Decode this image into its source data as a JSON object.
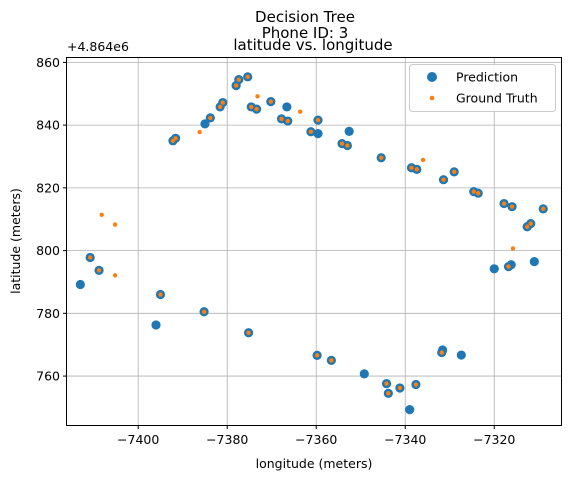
{
  "chart_data": {
    "type": "scatter",
    "title": [
      "Decision Tree",
      "Phone ID: 3",
      "latitude vs. longitude"
    ],
    "xlabel": "longitude (meters)",
    "ylabel": "latitude (meters)",
    "y_offset_label": "+4.864e6",
    "xlim": [
      -7416,
      -7305
    ],
    "ylim": [
      744.4,
      861.4
    ],
    "xticks": [
      -7400,
      -7380,
      -7360,
      -7340,
      -7320
    ],
    "xtick_labels": [
      "−7400",
      "−7380",
      "−7360",
      "−7340",
      "−7320"
    ],
    "yticks": [
      760,
      780,
      800,
      820,
      840,
      860
    ],
    "ytick_labels": [
      "760",
      "780",
      "800",
      "820",
      "840",
      "860"
    ],
    "grid": true,
    "legend_position": "top-right",
    "series": [
      {
        "name": "Prediction",
        "color": "#1f77b4",
        "marker": "large-circle",
        "points": [
          [
            -7413.0,
            789.2
          ],
          [
            -7410.8,
            797.8
          ],
          [
            -7408.8,
            793.7
          ],
          [
            -7396.0,
            776.3
          ],
          [
            -7395.0,
            786.0
          ],
          [
            -7392.2,
            835.0
          ],
          [
            -7391.6,
            835.8
          ],
          [
            -7385.2,
            780.5
          ],
          [
            -7385.0,
            840.4
          ],
          [
            -7383.8,
            842.3
          ],
          [
            -7381.6,
            845.8
          ],
          [
            -7381.0,
            847.2
          ],
          [
            -7378.0,
            852.6
          ],
          [
            -7377.4,
            854.5
          ],
          [
            -7375.4,
            855.4
          ],
          [
            -7375.2,
            773.8
          ],
          [
            -7374.6,
            845.8
          ],
          [
            -7373.4,
            845.1
          ],
          [
            -7370.2,
            847.5
          ],
          [
            -7367.8,
            842.0
          ],
          [
            -7366.6,
            845.8
          ],
          [
            -7366.4,
            841.3
          ],
          [
            -7361.2,
            837.9
          ],
          [
            -7359.8,
            766.6
          ],
          [
            -7359.6,
            841.6
          ],
          [
            -7359.6,
            837.3
          ],
          [
            -7356.6,
            765.0
          ],
          [
            -7354.2,
            834.1
          ],
          [
            -7353.0,
            833.5
          ],
          [
            -7352.6,
            838.0
          ],
          [
            -7349.2,
            760.7
          ],
          [
            -7345.4,
            829.6
          ],
          [
            -7344.2,
            757.6
          ],
          [
            -7343.8,
            754.5
          ],
          [
            -7341.2,
            756.2
          ],
          [
            -7339.0,
            749.3
          ],
          [
            -7338.6,
            826.4
          ],
          [
            -7337.6,
            757.3
          ],
          [
            -7337.4,
            825.9
          ],
          [
            -7331.8,
            767.5
          ],
          [
            -7331.6,
            768.3
          ],
          [
            -7331.4,
            822.6
          ],
          [
            -7329.0,
            825.1
          ],
          [
            -7327.4,
            766.7
          ],
          [
            -7324.6,
            818.8
          ],
          [
            -7323.6,
            818.3
          ],
          [
            -7320.0,
            794.2
          ],
          [
            -7317.8,
            815.0
          ],
          [
            -7316.8,
            794.9
          ],
          [
            -7316.2,
            795.5
          ],
          [
            -7316.0,
            814.0
          ],
          [
            -7312.6,
            807.6
          ],
          [
            -7311.8,
            808.6
          ],
          [
            -7311.0,
            796.5
          ],
          [
            -7309.0,
            813.3
          ]
        ]
      },
      {
        "name": "Ground Truth",
        "color": "#ff7f0e",
        "marker": "small-dot",
        "points": [
          [
            -7410.8,
            797.8
          ],
          [
            -7408.8,
            793.7
          ],
          [
            -7408.2,
            811.4
          ],
          [
            -7405.2,
            808.3
          ],
          [
            -7405.2,
            792.1
          ],
          [
            -7395.0,
            786.0
          ],
          [
            -7392.2,
            835.0
          ],
          [
            -7391.6,
            835.8
          ],
          [
            -7386.2,
            837.8
          ],
          [
            -7385.2,
            780.5
          ],
          [
            -7383.8,
            842.3
          ],
          [
            -7381.6,
            845.8
          ],
          [
            -7381.0,
            847.2
          ],
          [
            -7378.0,
            852.6
          ],
          [
            -7377.4,
            854.5
          ],
          [
            -7375.4,
            855.4
          ],
          [
            -7375.2,
            773.8
          ],
          [
            -7374.6,
            845.8
          ],
          [
            -7373.4,
            845.1
          ],
          [
            -7373.2,
            849.2
          ],
          [
            -7370.2,
            847.5
          ],
          [
            -7367.8,
            842.0
          ],
          [
            -7366.4,
            841.3
          ],
          [
            -7363.6,
            844.3
          ],
          [
            -7361.2,
            837.9
          ],
          [
            -7359.8,
            766.6
          ],
          [
            -7359.6,
            841.6
          ],
          [
            -7356.6,
            765.0
          ],
          [
            -7354.2,
            834.1
          ],
          [
            -7353.0,
            833.5
          ],
          [
            -7345.4,
            829.6
          ],
          [
            -7344.2,
            757.6
          ],
          [
            -7343.8,
            754.5
          ],
          [
            -7341.2,
            756.2
          ],
          [
            -7338.6,
            826.4
          ],
          [
            -7337.6,
            757.3
          ],
          [
            -7337.4,
            825.9
          ],
          [
            -7336.0,
            828.9
          ],
          [
            -7331.8,
            767.5
          ],
          [
            -7331.4,
            822.6
          ],
          [
            -7329.0,
            825.1
          ],
          [
            -7324.6,
            818.8
          ],
          [
            -7323.6,
            818.3
          ],
          [
            -7317.8,
            815.0
          ],
          [
            -7316.8,
            794.9
          ],
          [
            -7316.0,
            814.0
          ],
          [
            -7315.8,
            800.7
          ],
          [
            -7312.6,
            807.6
          ],
          [
            -7311.8,
            808.6
          ],
          [
            -7309.0,
            813.3
          ]
        ]
      }
    ]
  }
}
